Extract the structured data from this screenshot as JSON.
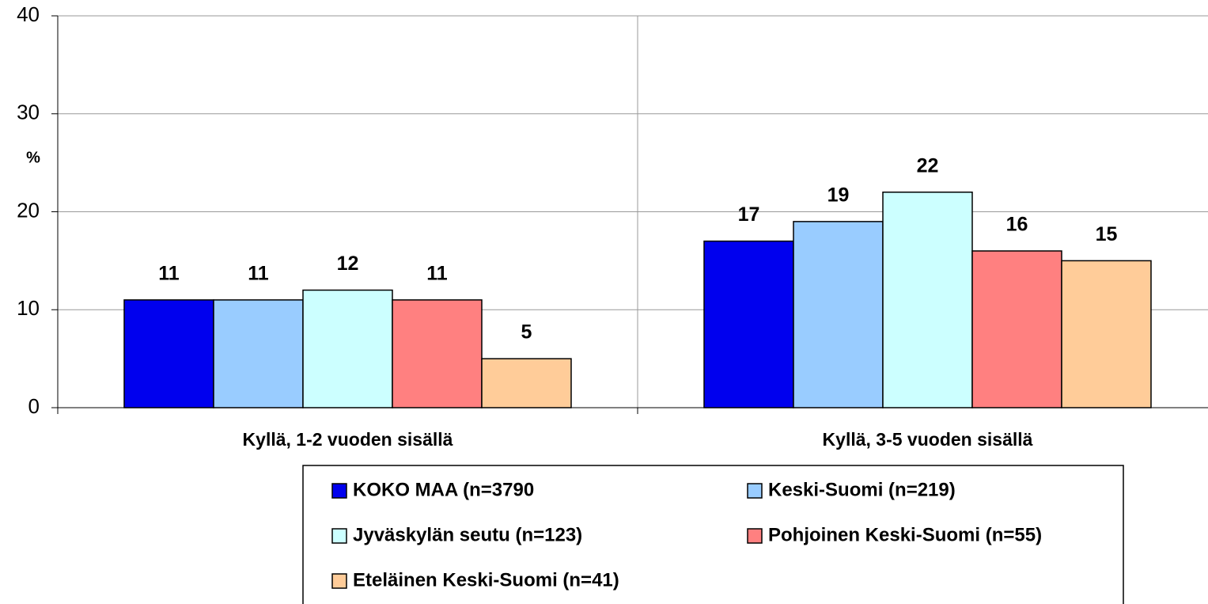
{
  "chart_data": {
    "type": "bar",
    "y_label": "%",
    "categories": [
      "Kyllä, 1-2 vuoden sisällä",
      "Kyllä, 3-5 vuoden sisällä"
    ],
    "series": [
      {
        "name": "KOKO MAA (n=3790",
        "color": "#0000ee",
        "values": [
          11,
          17
        ]
      },
      {
        "name": "Keski-Suomi (n=219)",
        "color": "#99ccff",
        "values": [
          11,
          19
        ]
      },
      {
        "name": "Jyväskylän seutu (n=123)",
        "color": "#ccffff",
        "values": [
          12,
          22
        ]
      },
      {
        "name": "Pohjoinen Keski-Suomi (n=55)",
        "color": "#ff8080",
        "values": [
          11,
          16
        ]
      },
      {
        "name": "Eteläinen Keski-Suomi (n=41)",
        "color": "#ffcc99",
        "values": [
          5,
          15
        ]
      }
    ],
    "ylim": [
      0,
      40
    ],
    "yticks": [
      0,
      10,
      20,
      30,
      40
    ],
    "grid": true
  }
}
